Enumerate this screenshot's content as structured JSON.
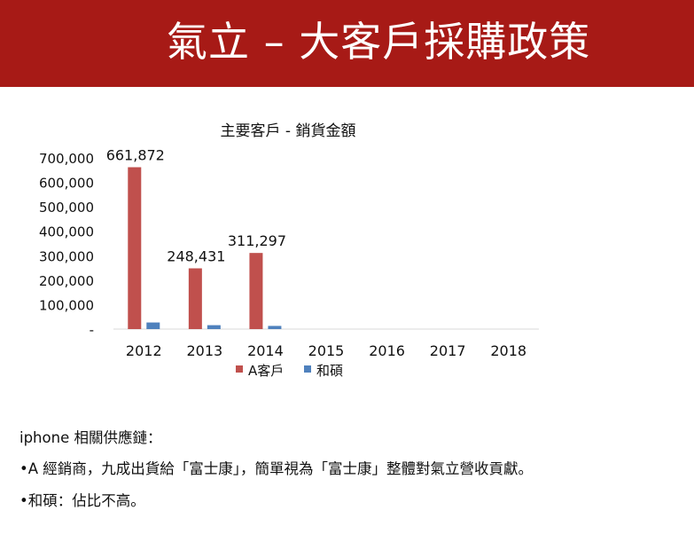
{
  "header": {
    "title": "氣立 – 大客戶採購政策"
  },
  "chart_data": {
    "type": "bar",
    "title": "主要客戶 - 銷貨金額",
    "categories": [
      "2012",
      "2013",
      "2014",
      "2015",
      "2016",
      "2017",
      "2018"
    ],
    "series": [
      {
        "name": "A客戶",
        "values": [
          661872,
          248431,
          311297,
          null,
          null,
          null,
          null
        ],
        "color": "#c0504d"
      },
      {
        "name": "和碩",
        "values": [
          27000,
          16000,
          13000,
          null,
          null,
          null,
          null
        ],
        "color": "#4f81bd"
      }
    ],
    "data_labels": [
      "661,872",
      "248,431",
      "311,297"
    ],
    "y_ticks": [
      "700,000",
      "600,000",
      "500,000",
      "400,000",
      "300,000",
      "200,000",
      "100,000",
      "-"
    ],
    "ylim": [
      0,
      700000
    ],
    "grid": false,
    "legend_position": "bottom"
  },
  "notes": {
    "line1": "iphone 相關供應鏈：",
    "line2": "•A 經銷商，九成出貨給「富士康」，簡單視為「富士康」整體對氣立營收貢獻。",
    "line3": "•和碩：佔比不高。"
  }
}
